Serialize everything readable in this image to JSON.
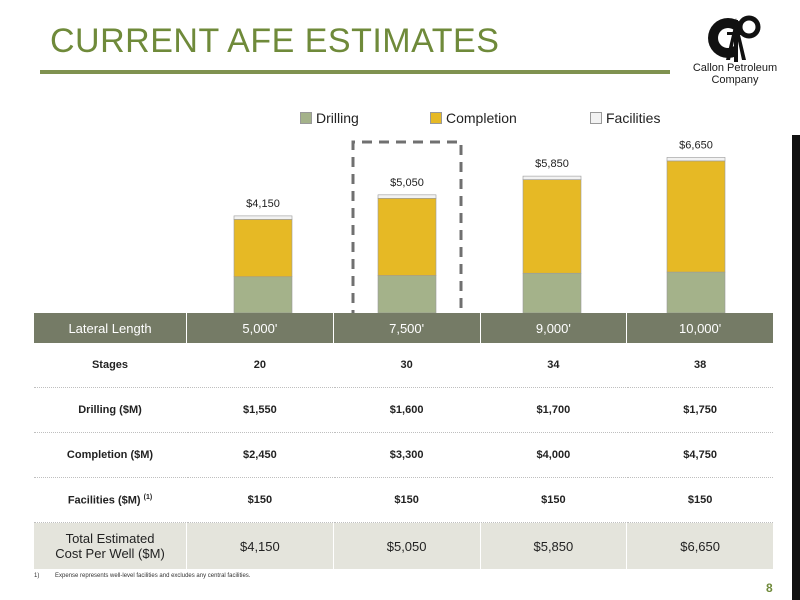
{
  "title": "CURRENT AFE ESTIMATES",
  "logo": {
    "line1": "Callon Petroleum",
    "line2": "Company",
    "monogram": "CP"
  },
  "legend": {
    "drilling": "Drilling",
    "completion": "Completion",
    "facilities": "Facilities"
  },
  "colors": {
    "drilling": "#a4b28a",
    "completion": "#e6b925",
    "facilities": "#f2f2f2",
    "accent": "#6f8a3a",
    "header": "#757b66"
  },
  "chart_data": {
    "type": "bar",
    "stacked": true,
    "categories": [
      "5,000'",
      "7,500'",
      "9,000'",
      "10,000'"
    ],
    "series": [
      {
        "name": "Drilling",
        "values": [
          1550,
          1600,
          1700,
          1750
        ]
      },
      {
        "name": "Completion",
        "values": [
          2450,
          3300,
          4000,
          4750
        ]
      },
      {
        "name": "Facilities",
        "values": [
          150,
          150,
          150,
          150
        ]
      }
    ],
    "totals": [
      4150,
      5050,
      5850,
      6650
    ],
    "total_labels": [
      "$4,150",
      "$5,050",
      "$5,850",
      "$6,650"
    ],
    "highlighted_category": "7,500'",
    "legend_position": "top"
  },
  "table": {
    "header_label": "Lateral Length",
    "columns": [
      "5,000'",
      "7,500'",
      "9,000'",
      "10,000'"
    ],
    "rows": [
      {
        "label": "Stages",
        "values": [
          "20",
          "30",
          "34",
          "38"
        ]
      },
      {
        "label": "Drilling ($M)",
        "values": [
          "$1,550",
          "$1,600",
          "$1,700",
          "$1,750"
        ]
      },
      {
        "label": "Completion ($M)",
        "values": [
          "$2,450",
          "$3,300",
          "$4,000",
          "$4,750"
        ]
      },
      {
        "label": "Facilities ($M)",
        "sup": "(1)",
        "values": [
          "$150",
          "$150",
          "$150",
          "$150"
        ]
      }
    ],
    "total": {
      "label_line1": "Total Estimated",
      "label_line2": "Cost Per Well ($M)",
      "values": [
        "$4,150",
        "$5,050",
        "$5,850",
        "$6,650"
      ]
    }
  },
  "footnote": {
    "number": "1)",
    "text": "Expense represents well-level facilities and excludes any central facilities."
  },
  "page_number": "8"
}
